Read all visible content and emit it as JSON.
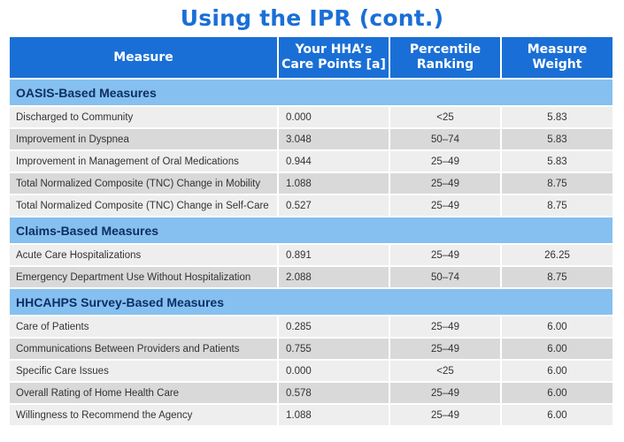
{
  "title": "Using the IPR (cont.)",
  "headers": [
    "Measure",
    "Your HHA’s\nCare Points [a]",
    "Percentile\nRanking",
    "Measure\nWeight"
  ],
  "sections": [
    {
      "name": "OASIS-Based Measures",
      "rows": [
        {
          "measure": "Discharged to Community",
          "points": "0.000",
          "percentile": "<25",
          "weight": "5.83"
        },
        {
          "measure": "Improvement in Dyspnea",
          "points": "3.048",
          "percentile": "50–74",
          "weight": "5.83"
        },
        {
          "measure": "Improvement in Management of Oral Medications",
          "points": "0.944",
          "percentile": "25–49",
          "weight": "5.83"
        },
        {
          "measure": "Total Normalized Composite (TNC) Change in Mobility",
          "points": "1.088",
          "percentile": "25–49",
          "weight": "8.75"
        },
        {
          "measure": "Total Normalized Composite (TNC) Change in Self-Care",
          "points": "0.527",
          "percentile": "25–49",
          "weight": "8.75"
        }
      ]
    },
    {
      "name": "Claims-Based Measures",
      "rows": [
        {
          "measure": "Acute Care Hospitalizations",
          "points": "0.891",
          "percentile": "25–49",
          "weight": "26.25"
        },
        {
          "measure": "Emergency Department Use Without Hospitalization",
          "points": "2.088",
          "percentile": "50–74",
          "weight": "8.75"
        }
      ]
    },
    {
      "name": "HHCAHPS Survey-Based Measures",
      "rows": [
        {
          "measure": "Care of Patients",
          "points": "0.285",
          "percentile": "25–49",
          "weight": "6.00"
        },
        {
          "measure": "Communications Between Providers and Patients",
          "points": "0.755",
          "percentile": "25–49",
          "weight": "6.00"
        },
        {
          "measure": "Specific Care Issues",
          "points": "0.000",
          "percentile": "<25",
          "weight": "6.00"
        },
        {
          "measure": "Overall Rating of Home Health Care",
          "points": "0.578",
          "percentile": "25–49",
          "weight": "6.00"
        },
        {
          "measure": "Willingness to Recommend the Agency",
          "points": "1.088",
          "percentile": "25–49",
          "weight": "6.00"
        }
      ]
    }
  ]
}
